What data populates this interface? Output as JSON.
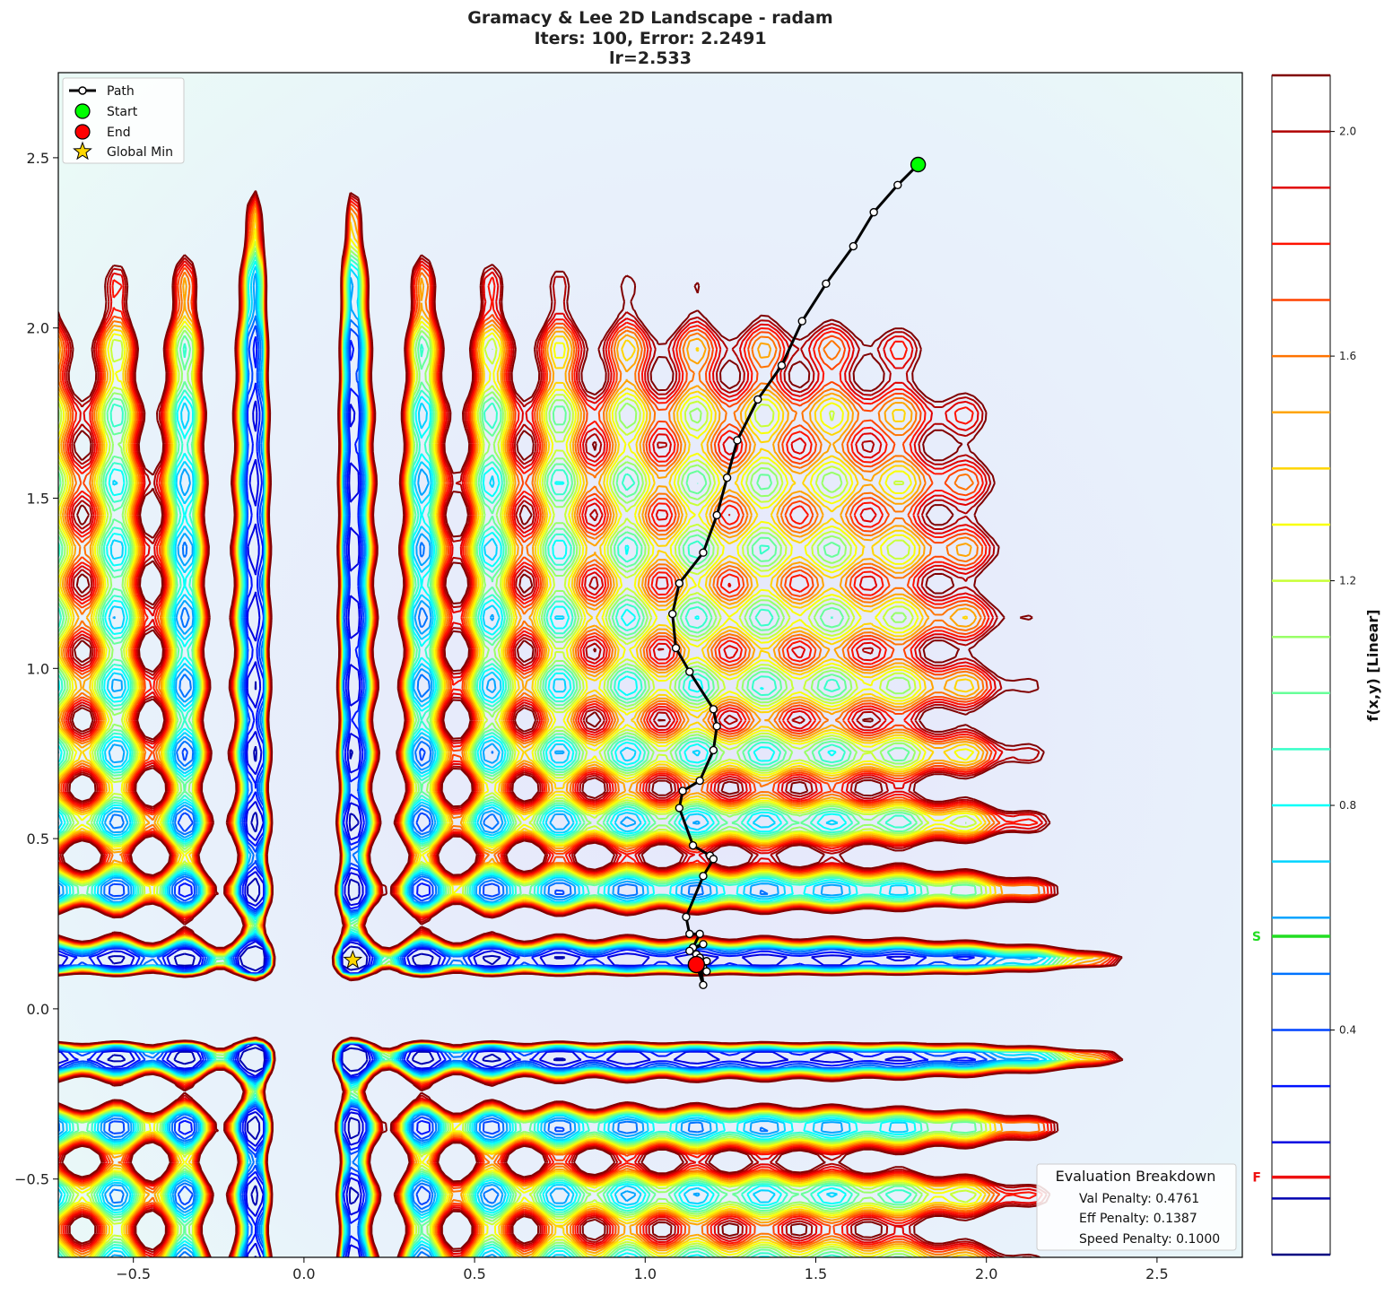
{
  "chart_data": {
    "type": "contour",
    "title_lines": [
      "Gramacy & Lee 2D Landscape - radam",
      "Iters: 100, Error: 2.2491",
      "lr=2.533"
    ],
    "xlim": [
      -0.72,
      2.75
    ],
    "ylim": [
      -0.73,
      2.75
    ],
    "x_ticks": [
      -0.5,
      0.0,
      0.5,
      1.0,
      1.5,
      2.0,
      2.5
    ],
    "x_tick_labels": [
      "−0.5",
      "0.0",
      "0.5",
      "1.0",
      "1.5",
      "2.0",
      "2.5"
    ],
    "y_ticks": [
      -0.5,
      0.0,
      0.5,
      1.0,
      1.5,
      2.0,
      2.5
    ],
    "y_tick_labels": [
      "−0.5",
      "0.0",
      "0.5",
      "1.0",
      "1.5",
      "2.0",
      "2.5"
    ],
    "grid": false,
    "legend": {
      "placement": "top-left",
      "entries": [
        {
          "label": "Path",
          "marker": "line-with-circle",
          "color": "#000000"
        },
        {
          "label": "Start",
          "marker": "circle",
          "color": "#00ff00"
        },
        {
          "label": "End",
          "marker": "circle",
          "color": "#ff0000"
        },
        {
          "label": "Global Min",
          "marker": "star",
          "color": "#ffd700"
        }
      ]
    },
    "colorbar": {
      "label": "f(x,y) [Linear]",
      "range": [
        0.0,
        2.1
      ],
      "ticks": [
        0.4,
        0.8,
        1.2,
        1.6,
        2.0
      ],
      "tick_labels": [
        "0.4",
        "0.8",
        "1.2",
        "1.6",
        "2.0"
      ],
      "levels": [
        0.0,
        0.1,
        0.2,
        0.3,
        0.4,
        0.5,
        0.6,
        0.7,
        0.8,
        0.9,
        1.0,
        1.1,
        1.2,
        1.3,
        1.4,
        1.5,
        1.6,
        1.7,
        1.8,
        1.9,
        2.0,
        2.1
      ],
      "start_marker": {
        "label": "S",
        "value": 0.567,
        "color": "#22dd22"
      },
      "final_marker": {
        "label": "F",
        "value": 0.138,
        "color": "#ee1111"
      }
    },
    "start_point": {
      "x": 1.8,
      "y": 2.48
    },
    "end_point": {
      "x": 1.15,
      "y": 0.13
    },
    "global_min": {
      "x": 0.143,
      "y": 0.143
    },
    "path": {
      "x": [
        1.8,
        1.74,
        1.67,
        1.61,
        1.53,
        1.46,
        1.4,
        1.33,
        1.27,
        1.24,
        1.21,
        1.17,
        1.1,
        1.08,
        1.09,
        1.13,
        1.2,
        1.21,
        1.2,
        1.16,
        1.11,
        1.1,
        1.14,
        1.19,
        1.2,
        1.17,
        1.12,
        1.13,
        1.16,
        1.14,
        1.17,
        1.13,
        1.16,
        1.18,
        1.15,
        1.17,
        1.14,
        1.18,
        1.16,
        1.17,
        1.15
      ],
      "y": [
        2.48,
        2.42,
        2.34,
        2.24,
        2.13,
        2.02,
        1.89,
        1.79,
        1.67,
        1.56,
        1.45,
        1.34,
        1.25,
        1.16,
        1.06,
        0.99,
        0.88,
        0.83,
        0.76,
        0.67,
        0.64,
        0.59,
        0.48,
        0.45,
        0.44,
        0.39,
        0.27,
        0.22,
        0.22,
        0.18,
        0.19,
        0.17,
        0.15,
        0.14,
        0.16,
        0.12,
        0.13,
        0.11,
        0.15,
        0.07,
        0.13
      ]
    }
  },
  "evaluation": {
    "title": "Evaluation Breakdown",
    "lines": [
      "Val Penalty: 0.4761",
      "Eff Penalty: 0.1387",
      "Speed Penalty: 0.1000"
    ]
  },
  "colors": {
    "path": "#000000",
    "start": "#00ff00",
    "end": "#ff0000",
    "global_min": "#ffd700",
    "background": "#ffffff"
  }
}
